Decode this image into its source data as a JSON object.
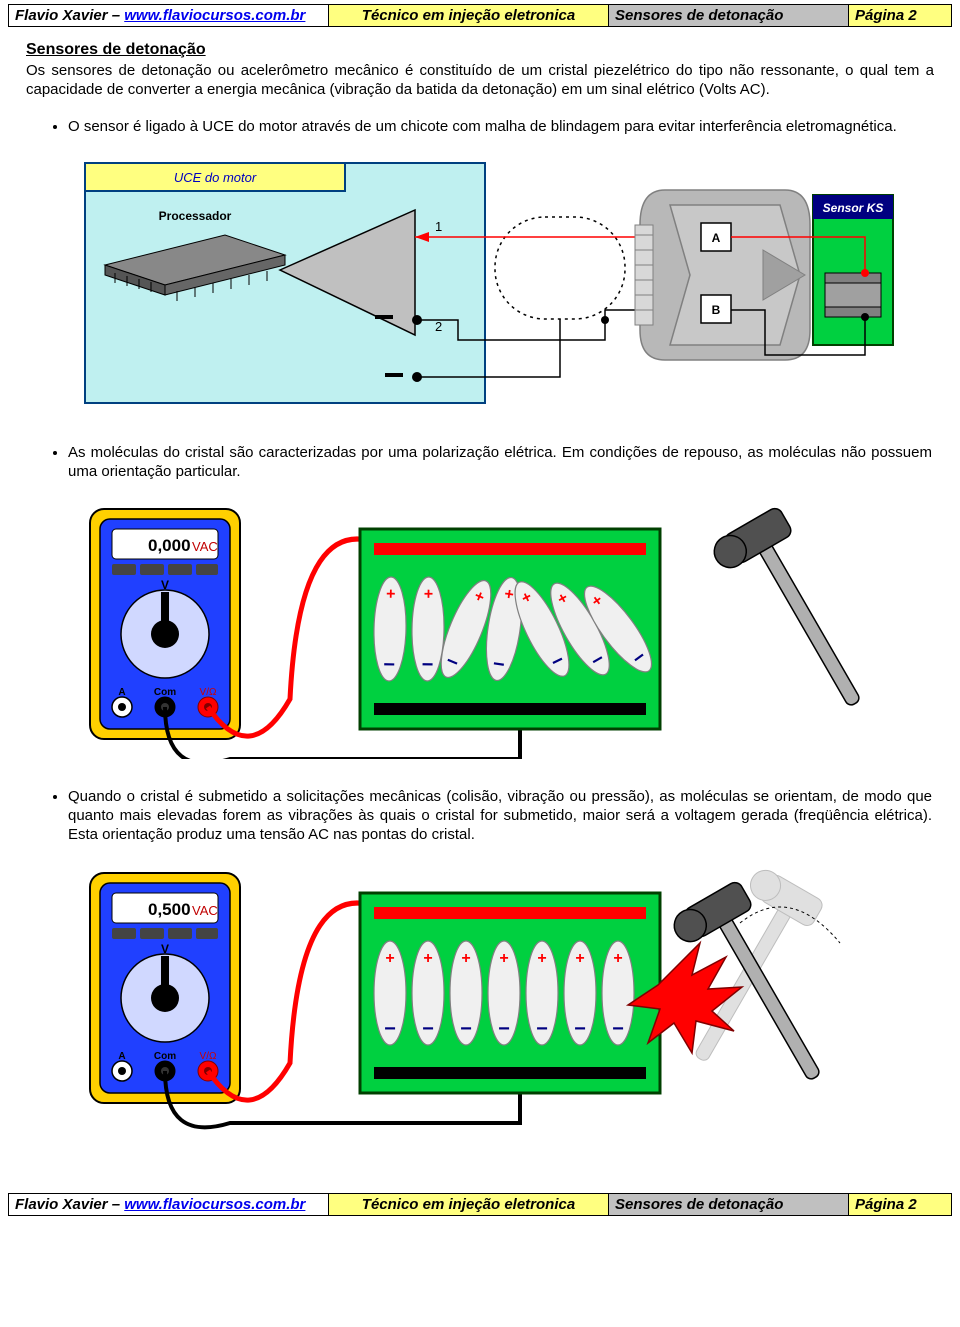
{
  "header": {
    "author": "Flavio Xavier – ",
    "url": "www.flaviocursos.com.br",
    "job": "Técnico em injeção eletronica",
    "sensor": "Sensores de detonação",
    "page_top": "Página 2",
    "page_bot": "Página 2"
  },
  "section": {
    "title": "Sensores de detonação",
    "intro": "Os sensores de detonação ou acelerômetro mecânico é constituído de um cristal piezelétrico do tipo não ressonante, o qual tem a capacidade de converter a energia mecânica (vibração da batida da detonação) em um sinal elétrico (Volts AC).",
    "bullet1": "O sensor é ligado à UCE do motor através de um chicote com malha de blindagem para evitar interferência eletromagnética.",
    "bullet2": "As moléculas do cristal são caracterizadas por uma polarização elétrica. Em condições de repouso, as moléculas não possuem uma orientação particular.",
    "bullet3": "Quando o cristal é submetido a solicitações mecânicas (colisão, vibração ou pressão), as moléculas se orientam, de modo que quanto mais elevadas forem as vibrações às quais o cristal for submetido, maior será a voltagem gerada (freqüência elétrica). Esta orientação produz uma tensão AC nas pontas do cristal."
  },
  "fig1": {
    "uce_label": "UCE do motor",
    "proc": "Processador",
    "sensor": "Sensor KS",
    "pin1": "1",
    "pin2": "2",
    "pinA": "A",
    "pinB": "B",
    "colors": {
      "uce_bg": "#bff0f0",
      "uce_title_bg": "#ffff80",
      "sensor_bg": "#00d040",
      "amp_fill": "#c0c0c0",
      "wire_red": "#ff0000",
      "wire_black": "#000000",
      "chip_dark": "#707070",
      "connector_gray": "#b8b8b8"
    }
  },
  "fig2": {
    "display": "0,000",
    "unit": "VAC",
    "v": "V",
    "a": "A",
    "com": "Com",
    "vohm": "V/Ω"
  },
  "fig3": {
    "display": "0,500",
    "unit": "VAC",
    "v": "V",
    "a": "A",
    "com": "Com",
    "vohm": "V/Ω"
  },
  "meter_colors": {
    "body": "#ffd000",
    "face": "#2040ff",
    "screen_bg": "#ffffff",
    "btn": "#444",
    "knob": "#000"
  },
  "crystal_colors": {
    "box_border": "#004000",
    "box_fill": "#00d040",
    "plate_top": "#ff0000",
    "plate_bot": "#000000",
    "mol_fill": "#f0f0f0",
    "mol_stroke": "#808080",
    "plus": "#ff0000",
    "minus": "#000080"
  },
  "hammer_colors": {
    "handle": "#b0b0b0",
    "head": "#505050",
    "ghost": "#c8c8c8",
    "impact": "#ff0000"
  }
}
